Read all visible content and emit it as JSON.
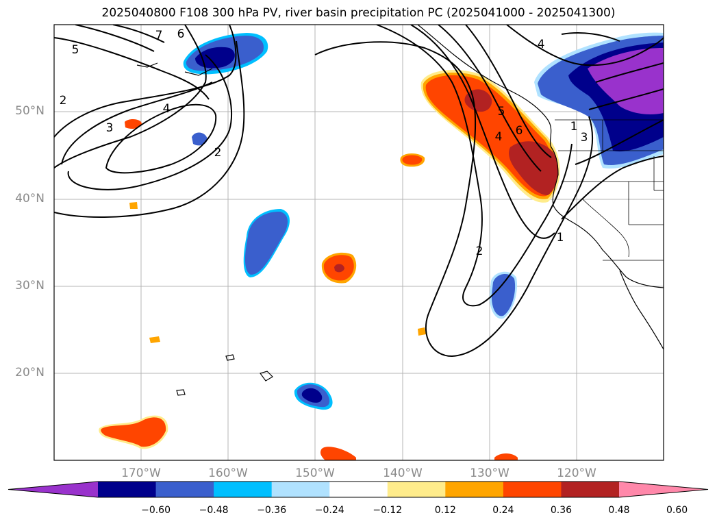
{
  "title": "2025040800 F108 300 hPa PV, river basin precipitation PC (2025041000 - 2025041300)",
  "lat_labels": [
    "50°N",
    "40°N",
    "30°N",
    "20°N"
  ],
  "lon_labels": [
    "170°W",
    "160°W",
    "150°W",
    "140°W",
    "130°W",
    "120°W"
  ],
  "pv_contour_labels": [
    "7",
    "6",
    "5",
    "4",
    "3",
    "2",
    "2",
    "4",
    "5",
    "6",
    "4",
    "3",
    "2",
    "1",
    "1"
  ],
  "colorbar": {
    "tick_labels": [
      "−0.60",
      "−0.48",
      "−0.36",
      "−0.24",
      "−0.12",
      "0.12",
      "0.24",
      "0.36",
      "0.48",
      "0.60"
    ],
    "colors": [
      "#9932cc",
      "#00008b",
      "#3a5fcd",
      "#00bfff",
      "#b0e2ff",
      "#ffffff",
      "#ffec8b",
      "#ffa500",
      "#ff4500",
      "#b22222",
      "#ff88aa"
    ],
    "extend": "both"
  }
}
